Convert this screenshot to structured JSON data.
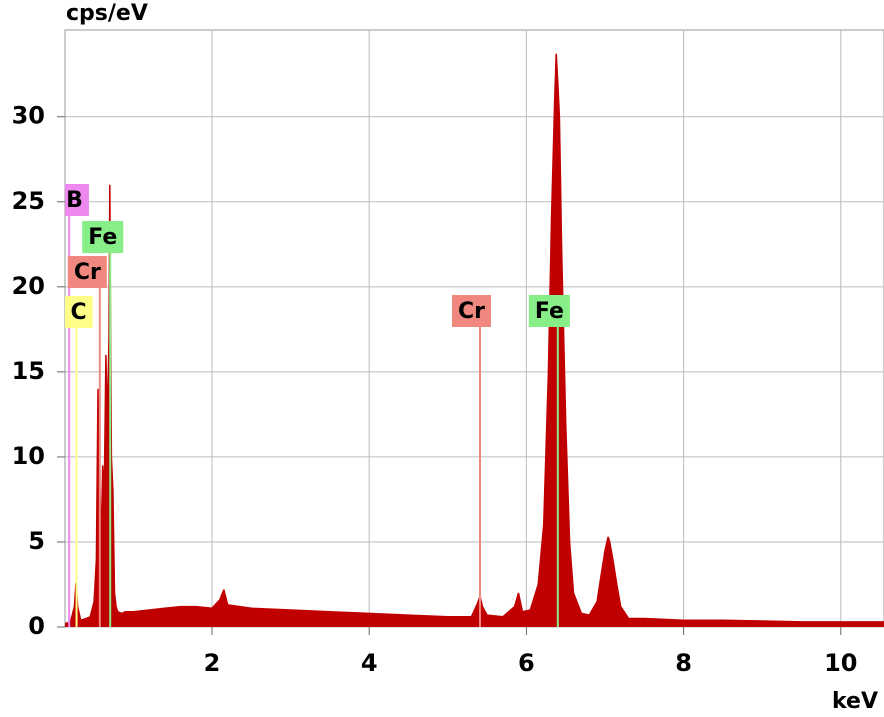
{
  "chart_data": {
    "type": "area",
    "y_label": "cps/eV",
    "x_label": "keV",
    "x": [
      0.13,
      0.2,
      0.25,
      0.27,
      0.29,
      0.33,
      0.4,
      0.45,
      0.5,
      0.53,
      0.55,
      0.57,
      0.59,
      0.61,
      0.63,
      0.65,
      0.67,
      0.69,
      0.7,
      0.71,
      0.72,
      0.74,
      0.76,
      0.78,
      0.8,
      0.85,
      0.9,
      1.0,
      1.2,
      1.4,
      1.6,
      1.8,
      2.0,
      2.1,
      2.15,
      2.2,
      2.5,
      3.0,
      3.5,
      4.0,
      4.5,
      5.0,
      5.3,
      5.38,
      5.41,
      5.44,
      5.5,
      5.7,
      5.85,
      5.9,
      5.95,
      6.05,
      6.15,
      6.22,
      6.28,
      6.32,
      6.36,
      6.38,
      6.4,
      6.42,
      6.45,
      6.5,
      6.55,
      6.6,
      6.7,
      6.8,
      6.9,
      6.95,
      7.0,
      7.04,
      7.06,
      7.1,
      7.15,
      7.2,
      7.3,
      7.5,
      8.0,
      8.5,
      9.0,
      9.5,
      10.0,
      10.55
    ],
    "values": [
      0.2,
      0.3,
      1.2,
      2.6,
      1.2,
      0.4,
      0.5,
      0.6,
      1.5,
      4,
      14,
      9,
      5,
      9.5,
      8,
      16,
      12,
      17,
      26,
      17,
      10,
      8,
      2,
      1.2,
      0.9,
      0.8,
      0.9,
      0.9,
      1,
      1.1,
      1.2,
      1.2,
      1.1,
      1.6,
      2.2,
      1.3,
      1.1,
      1,
      0.9,
      0.8,
      0.7,
      0.6,
      0.6,
      1.4,
      1.8,
      1.2,
      0.7,
      0.6,
      1.2,
      2,
      0.9,
      1,
      2.5,
      6,
      15,
      24,
      31,
      33.7,
      32,
      30,
      22,
      12,
      5,
      2,
      0.8,
      0.7,
      1.5,
      3,
      4.5,
      5.3,
      5,
      4,
      2.5,
      1.2,
      0.5,
      0.5,
      0.4,
      0.4,
      0.35,
      0.3,
      0.3,
      0.3
    ],
    "color": "#c00000",
    "xlim": [
      0.13,
      10.55
    ],
    "ylim": [
      0,
      35.1
    ],
    "xticks": [
      2,
      4,
      6,
      8,
      10
    ],
    "yticks": [
      0,
      5,
      10,
      15,
      20,
      25,
      30
    ],
    "grid": true,
    "markers": [
      {
        "label": "B",
        "energy": 0.183,
        "color": "#ee88ee"
      },
      {
        "label": "C",
        "energy": 0.277,
        "color": "#ffff88"
      },
      {
        "label": "Cr",
        "energy": 0.573,
        "color": "#f08880"
      },
      {
        "label": "Fe",
        "energy": 0.705,
        "color": "#88ee88"
      },
      {
        "label": "Cr",
        "energy": 5.41,
        "color": "#f08880"
      },
      {
        "label": "Fe",
        "energy": 6.4,
        "color": "#88ee88"
      }
    ]
  }
}
